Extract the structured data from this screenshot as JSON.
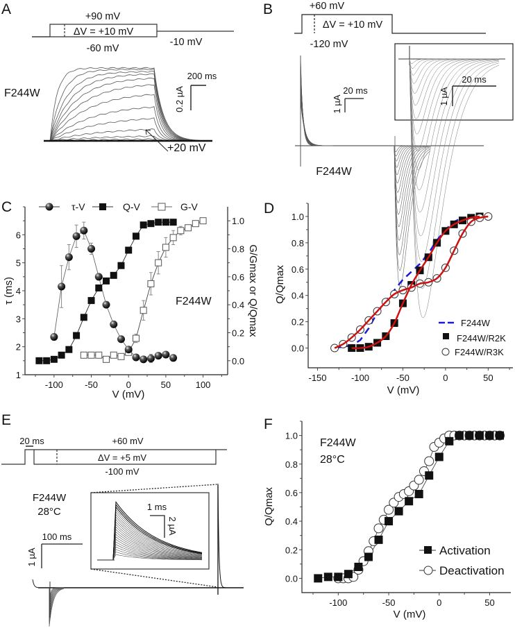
{
  "panels": {
    "A": {
      "letter": "A",
      "protocol": {
        "top_voltage": "+90 mV",
        "step": "ΔV = +10 mV",
        "bottom_voltage": "-60 mV",
        "tail_voltage": "-10 mV"
      },
      "construct": "F244W",
      "scale_time": "200 ms",
      "scale_current": "0.2 µA",
      "arrow_label": "+20 mV"
    },
    "B": {
      "letter": "B",
      "protocol": {
        "top_voltage": "+60 mV",
        "step": "ΔV = +10 mV",
        "bottom_voltage": "-120 mV"
      },
      "construct": "F244W",
      "scale_time": "20 ms",
      "scale_current": "1 µA",
      "inset_scale_time": "20 ms",
      "inset_scale_current": "1 µA"
    },
    "E": {
      "letter": "E",
      "protocol": {
        "prepulse_duration": "20 ms",
        "top_voltage": "+60 mV",
        "step": "ΔV = +5 mV",
        "bottom_voltage": "-100 mV"
      },
      "construct": "F244W",
      "temperature": "28°C",
      "scale_time": "100 ms",
      "scale_current": "1 µA",
      "inset_scale_time": "1 ms",
      "inset_scale_current": "2 µA"
    }
  },
  "chart_data": [
    {
      "panel": "C",
      "letter": "C",
      "type": "scatter",
      "title": "",
      "annotation": "F244W",
      "xlabel": "V (mV)",
      "ylabel": "τ (ms)",
      "ylabel_right": "G/Gmax or Q/Qmax",
      "xlim": [
        -139,
        133
      ],
      "ylim": [
        1,
        7
      ],
      "ylim_right": [
        -0.1,
        1.1
      ],
      "xticks": [
        -100,
        -50,
        0,
        50,
        100
      ],
      "yticks": [
        1,
        2,
        3,
        4,
        5,
        6
      ],
      "yticks_right": [
        0.0,
        0.2,
        0.4,
        0.6,
        0.8,
        1.0
      ],
      "legend_position": "top",
      "series": [
        {
          "name": "τ-V",
          "axis": "left",
          "marker": "sphere",
          "x": [
            -100,
            -90,
            -80,
            -70,
            -60,
            -50,
            -40,
            -30,
            -20,
            -10,
            0,
            10,
            20,
            30,
            40,
            50,
            60
          ],
          "y": [
            2.35,
            4.15,
            5.2,
            5.95,
            6.15,
            5.5,
            4.5,
            3.5,
            2.8,
            2.27,
            1.9,
            1.62,
            1.55,
            1.58,
            1.68,
            1.72,
            1.6
          ],
          "err": [
            0,
            0.75,
            0.45,
            0.4,
            0.3,
            0.2,
            0.1,
            0,
            0,
            0,
            0,
            0,
            0,
            0.15,
            0,
            0,
            0
          ]
        },
        {
          "name": "Q-V",
          "axis": "right",
          "marker": "filled-square",
          "x": [
            -120,
            -110,
            -100,
            -90,
            -80,
            -70,
            -60,
            -50,
            -40,
            -30,
            -20,
            -10,
            0,
            10,
            20,
            30,
            40,
            50,
            60
          ],
          "y": [
            0.0,
            0.0,
            0.01,
            0.04,
            0.08,
            0.18,
            0.31,
            0.43,
            0.52,
            0.57,
            0.61,
            0.68,
            0.79,
            0.89,
            0.97,
            0.98,
            0.99,
            0.99,
            0.99
          ]
        },
        {
          "name": "G-V",
          "axis": "right",
          "marker": "open-square",
          "x": [
            -60,
            -50,
            -40,
            -30,
            -20,
            -10,
            0,
            10,
            20,
            30,
            40,
            50,
            60,
            70,
            80,
            90,
            100
          ],
          "y": [
            0.04,
            0.04,
            0.04,
            0.01,
            0.04,
            0.03,
            0.06,
            0.16,
            0.36,
            0.55,
            0.7,
            0.81,
            0.88,
            0.93,
            0.95,
            0.98,
            1.0
          ],
          "err": [
            0.01,
            0.01,
            0,
            0.01,
            0.01,
            0.01,
            0.02,
            0.03,
            0.07,
            0.08,
            0.08,
            0.07,
            0.05,
            0.03,
            0.01,
            0.01,
            0
          ]
        }
      ]
    },
    {
      "panel": "D",
      "letter": "D",
      "type": "scatter",
      "title": "",
      "xlabel": "V (mV)",
      "ylabel": "Q/Qmax",
      "xlim": [
        -161,
        79
      ],
      "ylim": [
        -0.15,
        1.1
      ],
      "xticks": [
        -150,
        -100,
        -50,
        0,
        50
      ],
      "yticks": [
        0.0,
        0.2,
        0.4,
        0.6,
        0.8,
        1.0
      ],
      "legend_position": "bottom-right",
      "series": [
        {
          "name": "F244W",
          "style": "dashed-line",
          "color": "#1a1ad6",
          "x": [
            -130,
            -120,
            -110,
            -100,
            -90,
            -80,
            -70,
            -60,
            -50,
            -40,
            -30,
            -20,
            -10,
            0,
            10,
            20
          ],
          "y": [
            0.0,
            0.01,
            0.02,
            0.06,
            0.15,
            0.27,
            0.36,
            0.44,
            0.52,
            0.58,
            0.64,
            0.72,
            0.82,
            0.9,
            0.96,
            0.99
          ]
        },
        {
          "name": "F244W/R2K",
          "marker": "filled-square",
          "x": [
            -110,
            -100,
            -90,
            -80,
            -70,
            -60,
            -50,
            -40,
            -30,
            -20,
            -10,
            0,
            10,
            20,
            30,
            40
          ],
          "y": [
            0.0,
            0.0,
            0.01,
            0.04,
            0.09,
            0.19,
            0.34,
            0.48,
            0.59,
            0.69,
            0.8,
            0.89,
            0.94,
            0.97,
            0.99,
            1.0
          ]
        },
        {
          "name": "F244W/R3K",
          "marker": "open-circle",
          "x": [
            -130,
            -120,
            -110,
            -100,
            -90,
            -80,
            -70,
            -60,
            -50,
            -40,
            -30,
            -20,
            -10,
            0,
            10,
            20,
            30,
            40,
            50
          ],
          "y": [
            0.0,
            0.03,
            0.08,
            0.14,
            0.21,
            0.28,
            0.35,
            0.41,
            0.44,
            0.46,
            0.49,
            0.5,
            0.53,
            0.61,
            0.74,
            0.87,
            0.96,
            0.99,
            1.0
          ]
        }
      ],
      "fit_color": "#cc1111"
    },
    {
      "panel": "F",
      "letter": "F",
      "type": "scatter",
      "title": "",
      "annotation": [
        "F244W",
        "28°C"
      ],
      "xlabel": "V (mV)",
      "ylabel": "Q/Qmax",
      "xlim": [
        -136,
        71
      ],
      "ylim": [
        -0.1,
        1.1
      ],
      "xticks": [
        -100,
        -50,
        0,
        50
      ],
      "yticks": [
        0.0,
        0.2,
        0.4,
        0.6,
        0.8,
        1.0
      ],
      "legend_position": "bottom-right",
      "series": [
        {
          "name": "Activation",
          "marker": "filled-square",
          "x": [
            -120,
            -110,
            -100,
            -90,
            -80,
            -70,
            -60,
            -50,
            -40,
            -30,
            -20,
            -10,
            0,
            10,
            20,
            30,
            40,
            50,
            60
          ],
          "y": [
            0.0,
            0.01,
            0.01,
            0.03,
            0.08,
            0.15,
            0.27,
            0.4,
            0.47,
            0.54,
            0.59,
            0.72,
            0.85,
            0.96,
            1.0,
            1.0,
            1.0,
            1.0,
            1.0
          ]
        },
        {
          "name": "Deactivation",
          "marker": "open-circle",
          "x": [
            -100,
            -95,
            -90,
            -85,
            -80,
            -75,
            -70,
            -65,
            -60,
            -55,
            -50,
            -45,
            -40,
            -35,
            -30,
            -25,
            -20,
            -15,
            -10,
            -5,
            0,
            5,
            10,
            15,
            20,
            25,
            30,
            35,
            40,
            45,
            50,
            55,
            60
          ],
          "y": [
            0.0,
            0.0,
            0.0,
            0.01,
            0.06,
            0.12,
            0.19,
            0.26,
            0.35,
            0.41,
            0.48,
            0.53,
            0.57,
            0.59,
            0.61,
            0.65,
            0.69,
            0.75,
            0.82,
            0.92,
            0.95,
            0.98,
            1.0,
            1.0,
            1.0,
            1.0,
            1.0,
            1.0,
            1.0,
            1.0,
            1.0,
            1.0,
            1.0
          ]
        }
      ]
    }
  ]
}
